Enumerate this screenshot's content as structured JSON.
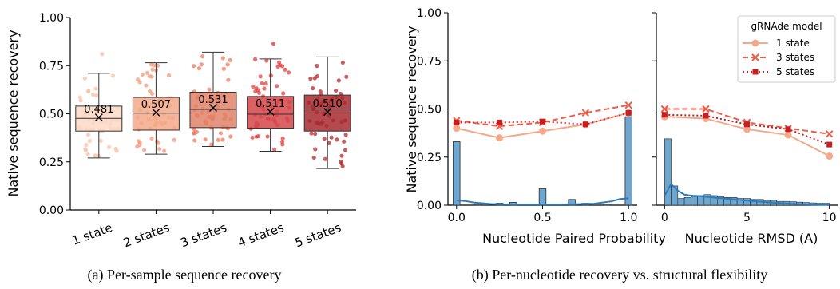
{
  "captions": {
    "a": "(a) Per-sample sequence recovery",
    "b": "(b) Per-nucleotide recovery vs. structural flexibility"
  },
  "colors": {
    "box_fills": [
      "#fbd9c6",
      "#f3a98a",
      "#e2836a",
      "#d4474a",
      "#a62a2f"
    ],
    "dots": [
      "#f7c2a6",
      "#f39a7d",
      "#ee7a5d",
      "#e04042",
      "#b4282e"
    ],
    "series": [
      "#f5a98b",
      "#ef5b45",
      "#c91d22"
    ],
    "hist": "#6fa6cf",
    "kde": "#2b7bba"
  },
  "chart_data": [
    {
      "type": "box",
      "title": "",
      "xlabel": "",
      "ylabel": "Native sequence recovery",
      "ylim": [
        0,
        1
      ],
      "yticks": [
        "0.00",
        "0.25",
        "0.50",
        "0.75",
        "1.00"
      ],
      "categories": [
        "1 state",
        "2 states",
        "3 states",
        "4 states",
        "5 states"
      ],
      "boxes": [
        {
          "q1": 0.41,
          "median": 0.476,
          "q3": 0.54,
          "whisker_low": 0.27,
          "whisker_high": 0.71,
          "mean": 0.481
        },
        {
          "q1": 0.415,
          "median": 0.503,
          "q3": 0.585,
          "whisker_low": 0.29,
          "whisker_high": 0.765,
          "mean": 0.507
        },
        {
          "q1": 0.428,
          "median": 0.523,
          "q3": 0.612,
          "whisker_low": 0.33,
          "whisker_high": 0.82,
          "mean": 0.531
        },
        {
          "q1": 0.425,
          "median": 0.498,
          "q3": 0.59,
          "whisker_low": 0.305,
          "whisker_high": 0.785,
          "mean": 0.511
        },
        {
          "q1": 0.41,
          "median": 0.525,
          "q3": 0.597,
          "whisker_low": 0.215,
          "whisker_high": 0.795,
          "mean": 0.51
        }
      ],
      "mean_labels": [
        "0.481",
        "0.507",
        "0.531",
        "0.511",
        "0.510"
      ],
      "outliers": [
        [
          0.81
        ],
        [],
        [],
        [
          0.865
        ],
        []
      ]
    },
    {
      "type": "line",
      "title": "",
      "xlabel": "Nucleotide Paired Probability",
      "ylabel": "Native sequence recovery",
      "xlim": [
        -0.05,
        1.05
      ],
      "ylim": [
        0,
        1
      ],
      "xticks": [
        "0.0",
        "0.5",
        "1.0"
      ],
      "yticks": [
        "0.00",
        "0.25",
        "0.50",
        "0.75",
        "1.00"
      ],
      "x": [
        0,
        0.25,
        0.5,
        0.75,
        1.0
      ],
      "series": [
        {
          "values": [
            0.4,
            0.35,
            0.385,
            0.42,
            0.48
          ]
        },
        {
          "values": [
            0.44,
            0.41,
            0.43,
            0.48,
            0.52
          ]
        },
        {
          "values": [
            0.43,
            0.43,
            0.435,
            0.42,
            0.48
          ]
        }
      ],
      "histogram": {
        "bins": [
          0.0,
          0.125,
          0.25,
          0.33,
          0.5,
          0.67,
          0.75,
          0.875,
          1.0
        ],
        "heights": [
          0.33,
          0.005,
          0.01,
          0.015,
          0.085,
          0.03,
          0.01,
          0.005,
          0.46
        ]
      },
      "kde": {
        "x": [
          0,
          0.05,
          0.1,
          0.2,
          0.3,
          0.4,
          0.5,
          0.6,
          0.7,
          0.8,
          0.9,
          0.95,
          1.0
        ],
        "y": [
          0.025,
          0.022,
          0.014,
          0.006,
          0.004,
          0.004,
          0.004,
          0.004,
          0.005,
          0.008,
          0.02,
          0.032,
          0.036
        ]
      }
    },
    {
      "type": "line",
      "title": "",
      "xlabel": "Nucleotide RMSD (A)",
      "ylabel": "",
      "xlim": [
        -0.5,
        10.5
      ],
      "ylim": [
        0,
        1
      ],
      "xticks": [
        "0",
        "5",
        "10"
      ],
      "legend": {
        "title": "gRNAde model",
        "position": "top-right"
      },
      "x": [
        0,
        2.5,
        5,
        7.5,
        10
      ],
      "series": [
        {
          "name": "1 state",
          "values": [
            0.46,
            0.45,
            0.395,
            0.365,
            0.255
          ]
        },
        {
          "name": "3 states",
          "values": [
            0.5,
            0.5,
            0.43,
            0.4,
            0.37
          ]
        },
        {
          "name": "5 states",
          "values": [
            0.47,
            0.465,
            0.42,
            0.395,
            0.315
          ]
        }
      ],
      "histogram": {
        "bin_width": 0.4,
        "heights": [
          0.345,
          0.1,
          0.035,
          0.04,
          0.045,
          0.05,
          0.055,
          0.05,
          0.045,
          0.04,
          0.04,
          0.035,
          0.035,
          0.03,
          0.03,
          0.025,
          0.025,
          0.02,
          0.02,
          0.018,
          0.016,
          0.014,
          0.012,
          0.01,
          0.01
        ]
      },
      "kde": {
        "x": [
          0,
          0.4,
          0.8,
          1.2,
          1.6,
          2,
          3,
          4,
          5,
          6,
          7,
          8,
          9,
          10
        ],
        "y": [
          0.05,
          0.11,
          0.075,
          0.055,
          0.05,
          0.048,
          0.04,
          0.032,
          0.024,
          0.017,
          0.011,
          0.006,
          0.003,
          0.0015
        ]
      }
    }
  ]
}
